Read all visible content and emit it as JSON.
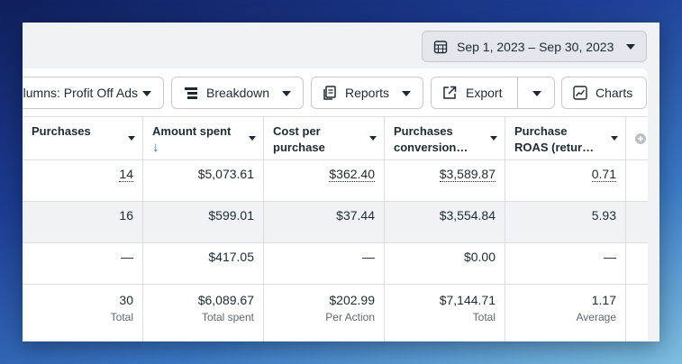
{
  "date_range": {
    "label": "Sep 1, 2023 – Sep 30, 2023"
  },
  "toolbar": {
    "columns_label": "Columns: Profit Off Ads",
    "breakdown_label": "Breakdown",
    "reports_label": "Reports",
    "export_label": "Export",
    "charts_label": "Charts"
  },
  "table": {
    "headers": [
      {
        "line1": "Purchases",
        "line2": ""
      },
      {
        "line1": "Amount spent",
        "line2": "↓"
      },
      {
        "line1": "Cost per",
        "line2": "purchase"
      },
      {
        "line1": "Purchases",
        "line2": "conversion…"
      },
      {
        "line1": "Purchase",
        "line2": "ROAS (retur…"
      }
    ],
    "rows": [
      [
        "14",
        "$5,073.61",
        "$362.40",
        "$3,589.87",
        "0.71"
      ],
      [
        "16",
        "$599.01",
        "$37.44",
        "$3,554.84",
        "5.93"
      ],
      [
        "—",
        "$417.05",
        "—",
        "$0.00",
        "—"
      ]
    ],
    "totals": {
      "values": [
        "30",
        "$6,089.67",
        "$202.99",
        "$7,144.71",
        "1.17"
      ],
      "labels": [
        "Total",
        "Total spent",
        "Per Action",
        "Total",
        "Average"
      ]
    }
  },
  "colors": {
    "accent": "#1877f2",
    "text": "#1c2b33",
    "border": "#dadde1"
  }
}
